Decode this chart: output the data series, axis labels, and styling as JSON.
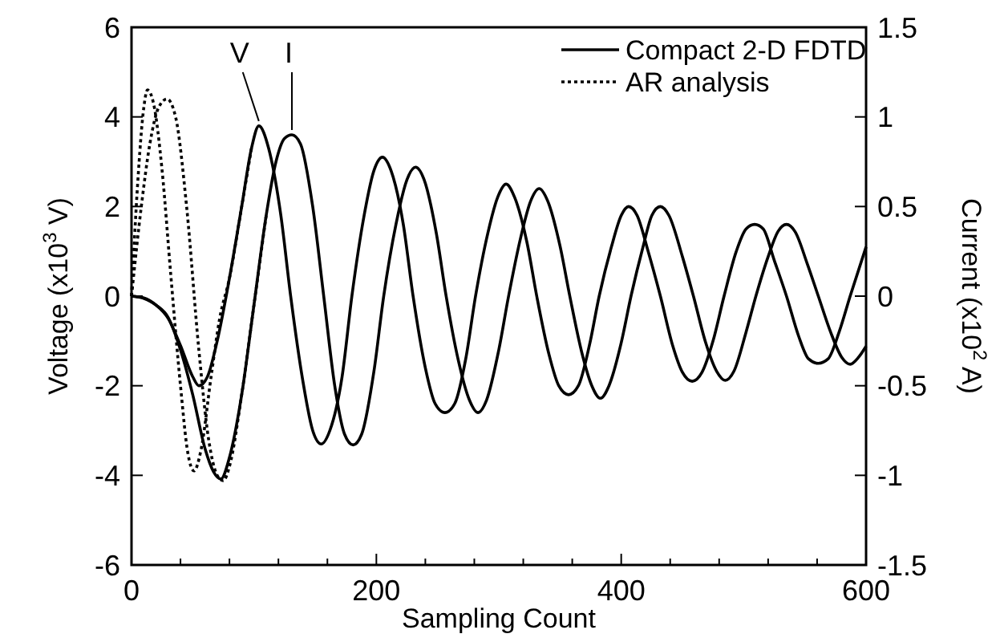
{
  "chart_data": {
    "type": "line",
    "xlabel": "Sampling Count",
    "ylabel": "Voltage (x10$^{3}$ V)",
    "y2label": "Current (x10$^{2}$ A)",
    "xlim": [
      0,
      600
    ],
    "xticks": [
      0,
      {
        "value": 40,
        "label": null
      },
      {
        "value": 80,
        "label": null
      },
      {
        "value": 120,
        "label": null
      },
      {
        "value": 160,
        "label": null
      },
      200,
      {
        "value": 240,
        "label": null
      },
      {
        "value": 280,
        "label": null
      },
      {
        "value": 320,
        "label": null
      },
      {
        "value": 360,
        "label": null
      },
      400,
      {
        "value": 440,
        "label": null
      },
      {
        "value": 480,
        "label": null
      },
      {
        "value": 520,
        "label": null
      },
      {
        "value": 560,
        "label": null
      },
      600
    ],
    "ylim": [
      -6,
      6
    ],
    "yticks": [
      -6,
      -4,
      -2,
      0,
      2,
      4,
      6
    ],
    "y2lim": [
      -1.5,
      1.5
    ],
    "y2ticks": [
      -1.5,
      -1,
      -0.5,
      0,
      0.5,
      1,
      1.5
    ],
    "legend": "top right",
    "grid": false,
    "marker": "none",
    "series": [
      {
        "name": "Compact 2-D FDTD",
        "color": "#000000",
        "line_style": "solid",
        "x": [
          0,
          10,
          20,
          30,
          40,
          50,
          55,
          62,
          70,
          80,
          90,
          98,
          104,
          112,
          122,
          130,
          140,
          148,
          155,
          162,
          172,
          180,
          190,
          198,
          205,
          212,
          222,
          230,
          240,
          248,
          256,
          264,
          273,
          281,
          291,
          299,
          306,
          313,
          323,
          331,
          341,
          349,
          357,
          365,
          374,
          382,
          392,
          400,
          406,
          413,
          422,
          432,
          442,
          450,
          458,
          466,
          475,
          484,
          494,
          502,
          509,
          516,
          525,
          535,
          545,
          553,
          561,
          569,
          578,
          587,
          600
        ],
        "values": [
          0,
          -0.05,
          -0.2,
          -0.5,
          -1.1,
          -1.8,
          -2.0,
          -1.8,
          -1.0,
          0.4,
          2.0,
          3.3,
          3.8,
          3.3,
          1.8,
          0,
          -1.9,
          -3.0,
          -3.3,
          -3.0,
          -1.8,
          0,
          1.8,
          2.8,
          3.1,
          2.8,
          1.6,
          0,
          -1.6,
          -2.4,
          -2.6,
          -2.4,
          -1.4,
          0,
          1.4,
          2.2,
          2.5,
          2.2,
          1.2,
          0,
          -1.3,
          -2.0,
          -2.2,
          -2.0,
          -1.1,
          0,
          1.1,
          1.8,
          2.0,
          1.8,
          1.0,
          0,
          -1.1,
          -1.7,
          -1.9,
          -1.7,
          -1.0,
          0,
          1.0,
          1.5,
          1.6,
          1.5,
          0.8,
          0,
          -0.9,
          -1.4,
          -1.5,
          -1.4,
          -0.8,
          0,
          1.1
        ]
      },
      {
        "color": "#000000",
        "line_style": "solid",
        "axis": "y2",
        "x": [
          0,
          10,
          20,
          30,
          40,
          50,
          60,
          67,
          73,
          80,
          90,
          100,
          110,
          118,
          125,
          131,
          138,
          148,
          157,
          166,
          174,
          181,
          188,
          198,
          206,
          216,
          225,
          232,
          239,
          249,
          257,
          267,
          276,
          283,
          290,
          300,
          308,
          318,
          326,
          333,
          340,
          350,
          358,
          368,
          376,
          383,
          390,
          400,
          408,
          418,
          425,
          432,
          439,
          450,
          459,
          469,
          478,
          485,
          492,
          502,
          510,
          520,
          528,
          535,
          542,
          552,
          561,
          571,
          580,
          587,
          594,
          600
        ],
        "values": [
          0,
          -0.01,
          -0.05,
          -0.12,
          -0.3,
          -0.55,
          -0.85,
          -0.98,
          -1.02,
          -0.9,
          -0.55,
          -0.05,
          0.45,
          0.75,
          0.88,
          0.9,
          0.85,
          0.5,
          0,
          -0.5,
          -0.77,
          -0.83,
          -0.77,
          -0.42,
          0,
          0.4,
          0.65,
          0.72,
          0.65,
          0.35,
          0,
          -0.36,
          -0.58,
          -0.65,
          -0.58,
          -0.3,
          0,
          0.33,
          0.53,
          0.6,
          0.53,
          0.28,
          0,
          -0.32,
          -0.5,
          -0.57,
          -0.5,
          -0.26,
          0,
          0.28,
          0.45,
          0.5,
          0.45,
          0.22,
          0,
          -0.26,
          -0.42,
          -0.47,
          -0.42,
          -0.2,
          0,
          0.22,
          0.36,
          0.4,
          0.36,
          0.18,
          0,
          -0.2,
          -0.34,
          -0.38,
          -0.34,
          -0.28
        ]
      },
      {
        "name": "AR analysis",
        "color": "#000000",
        "line_style": "dotted",
        "x": [
          0,
          5,
          10,
          13,
          18,
          25,
          32,
          40,
          46,
          51,
          57,
          65,
          72,
          80,
          90,
          98
        ],
        "values": [
          0,
          2.5,
          4.2,
          4.6,
          4.3,
          2.8,
          0.5,
          -2.0,
          -3.5,
          -3.9,
          -3.4,
          -1.8,
          -0.5,
          0.4,
          2.0,
          3.3
        ]
      },
      {
        "color": "#000000",
        "line_style": "dotted",
        "axis": "y2",
        "x": [
          0,
          8,
          15,
          22,
          29,
          36,
          45,
          55,
          63,
          70,
          75,
          80,
          90,
          100,
          110
        ],
        "values": [
          0,
          0.5,
          0.85,
          1.05,
          1.1,
          1.0,
          0.5,
          -0.3,
          -0.8,
          -1.0,
          -1.03,
          -0.95,
          -0.55,
          -0.05,
          0.45
        ]
      }
    ],
    "annotations": [
      {
        "text": "V",
        "x": 104,
        "y": 3.8
      },
      {
        "text": "I",
        "x": 131,
        "y": 3.6
      }
    ]
  }
}
